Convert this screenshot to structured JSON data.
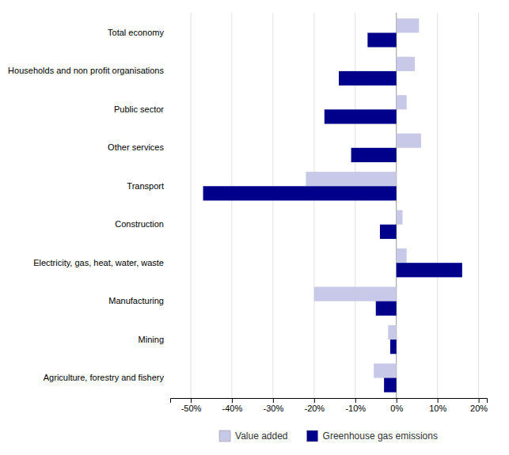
{
  "chart_data": {
    "type": "bar",
    "orientation": "horizontal",
    "categories": [
      "Total economy",
      "Households and non profit organisations",
      "Public sector",
      "Other services",
      "Transport",
      "Construction",
      "Electricity, gas, heat, water, waste",
      "Manufacturing",
      "Mining",
      "Agriculture, forestry and fishery"
    ],
    "series": [
      {
        "name": "Value added",
        "color": "#c8c8e8",
        "values": [
          5.5,
          4.5,
          2.5,
          6.0,
          -22.0,
          1.5,
          2.5,
          -20.0,
          -2.0,
          -5.5
        ]
      },
      {
        "name": "Greenhouse gas emissions",
        "color": "#00008b",
        "values": [
          -7.0,
          -14.0,
          -17.5,
          -11.0,
          -47.0,
          -4.0,
          16.0,
          -5.0,
          -1.5,
          -3.0
        ]
      }
    ],
    "xlim": [
      -55,
      22
    ],
    "xticks": [
      {
        "value": -50,
        "label": "-50%"
      },
      {
        "value": -40,
        "label": "-40%"
      },
      {
        "value": -30,
        "label": "-30%"
      },
      {
        "value": -20,
        "label": "-20%"
      },
      {
        "value": -10,
        "label": "-10%"
      },
      {
        "value": 0,
        "label": "0%"
      },
      {
        "value": 10,
        "label": "10%"
      },
      {
        "value": 20,
        "label": "20%"
      }
    ],
    "grid": true,
    "legend": "bottom"
  }
}
